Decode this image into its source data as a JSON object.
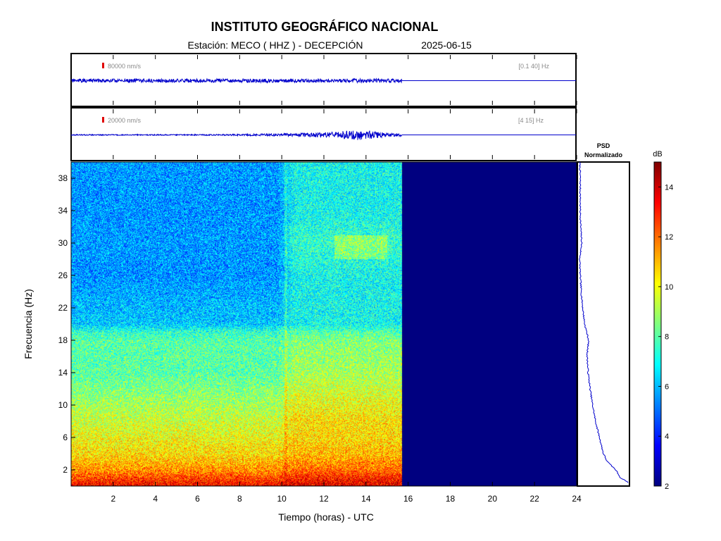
{
  "title": "INSTITUTO GEOGRÁFICO NACIONAL",
  "subtitle": {
    "station": "Estación:  MECO ( HHZ ) - DECEPCIÓN",
    "date": "2025-06-15"
  },
  "chart_data": [
    {
      "type": "line",
      "name": "seismogram-broadband",
      "scale_label": "80000 nm/s",
      "filter_label": "[0.1 40] Hz",
      "x_range": [
        0,
        24
      ],
      "data_end_hour": 15.7,
      "amplitude_envelope": {
        "x": [
          0,
          2,
          4,
          6,
          8,
          10,
          12,
          14,
          15.7
        ],
        "y": [
          0.07,
          0.07,
          0.07,
          0.07,
          0.07,
          0.07,
          0.07,
          0.08,
          0.07
        ]
      },
      "colors": {
        "trace": "#0000cc",
        "scale_bar": "#e00000"
      }
    },
    {
      "type": "line",
      "name": "seismogram-filtered",
      "scale_label": "20000 nm/s",
      "filter_label": "[4 15] Hz",
      "x_range": [
        0,
        24
      ],
      "data_end_hour": 15.7,
      "amplitude_envelope": {
        "x": [
          0,
          2,
          4,
          6,
          8,
          10,
          11,
          12,
          13,
          13.5,
          14,
          14.5,
          15,
          15.7
        ],
        "y": [
          0.02,
          0.02,
          0.02,
          0.02,
          0.03,
          0.05,
          0.07,
          0.1,
          0.15,
          0.2,
          0.18,
          0.12,
          0.08,
          0.06
        ]
      },
      "colors": {
        "trace": "#0000cc",
        "scale_bar": "#e00000"
      }
    },
    {
      "type": "heatmap",
      "name": "spectrogram",
      "xlabel": "Tiempo (horas) - UTC",
      "ylabel": "Frecuencia  (Hz)",
      "xlim": [
        0,
        24
      ],
      "ylim": [
        0,
        40
      ],
      "xticks": [
        2,
        4,
        6,
        8,
        10,
        12,
        14,
        16,
        18,
        20,
        22,
        24
      ],
      "yticks": [
        2,
        6,
        10,
        14,
        18,
        22,
        26,
        30,
        34,
        38
      ],
      "data_end_hour": 15.7,
      "colorbar": {
        "label": "dB",
        "min": 2,
        "max": 15,
        "ticks": [
          2,
          4,
          6,
          8,
          10,
          12,
          14
        ]
      },
      "level_profile": {
        "freq": [
          0,
          1,
          2,
          3,
          4,
          6,
          8,
          10,
          12,
          14,
          16,
          18,
          19,
          20,
          22,
          26,
          30,
          34,
          38,
          40
        ],
        "db_before_10h": [
          13.5,
          12.5,
          11.5,
          11,
          10.5,
          10,
          9.5,
          9,
          8.5,
          8,
          8,
          8,
          7.5,
          6.2,
          6,
          5.5,
          5.6,
          5.5,
          5.6,
          5.6
        ],
        "db_after_10h": [
          13.8,
          13,
          12,
          11.5,
          11,
          10.5,
          10.5,
          10,
          9.5,
          9,
          8.8,
          8.5,
          8,
          7,
          7,
          7,
          7.5,
          7,
          7,
          7
        ]
      }
    },
    {
      "type": "line",
      "name": "psd",
      "title": "PSD\nNormalizado",
      "freq": [
        40,
        38,
        36,
        34,
        32,
        30,
        29,
        28,
        26,
        24,
        22,
        20,
        18,
        17,
        16,
        14,
        12,
        10,
        8,
        6,
        4,
        3,
        2,
        1,
        0.5
      ],
      "value": [
        0.02,
        0.03,
        0.03,
        0.03,
        0.04,
        0.06,
        0.04,
        0.02,
        0.03,
        0.05,
        0.08,
        0.12,
        0.2,
        0.18,
        0.17,
        0.19,
        0.23,
        0.28,
        0.34,
        0.42,
        0.5,
        0.58,
        0.75,
        0.85,
        1.0
      ]
    }
  ]
}
